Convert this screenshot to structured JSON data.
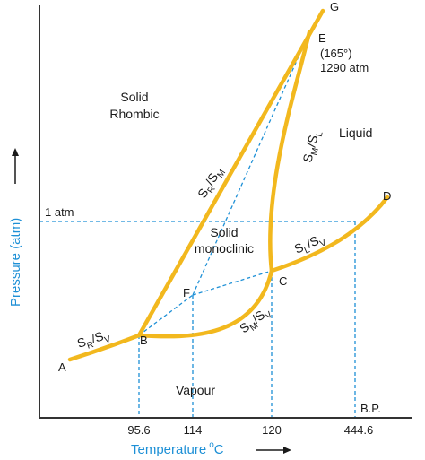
{
  "colors": {
    "curve": "#f2b81e",
    "guide": "#1e90d6",
    "axis": "#333333",
    "text": "#1a1a1a",
    "axis_label": "#1e90d6"
  },
  "points": {
    "A": "A",
    "B": "B",
    "C": "C",
    "D": "D",
    "E": "E",
    "F": "F",
    "G": "G"
  },
  "point_e_note": {
    "line1": "(165°)",
    "line2": "1290 atm"
  },
  "regions": {
    "solid_rhombic": [
      "Solid",
      "Rhombic"
    ],
    "solid_monoclinic": [
      "Solid",
      "monoclinic"
    ],
    "liquid": "Liquid",
    "vapour": "Vapour"
  },
  "curve_labels": {
    "sr_sv": {
      "a": "S",
      "a_sub": "R",
      "sep": "/",
      "b": "S",
      "b_sub": "V"
    },
    "sr_sm": {
      "a": "S",
      "a_sub": "R",
      "sep": "/",
      "b": "S",
      "b_sub": "M"
    },
    "sm_sl": {
      "a": "S",
      "a_sub": "M",
      "sep": "/",
      "b": "S",
      "b_sub": "L"
    },
    "sm_sv": {
      "a": "S",
      "a_sub": "M",
      "sep": "/",
      "b": "S",
      "b_sub": "V"
    },
    "sl_sv": {
      "a": "S",
      "a_sub": "L",
      "sep": "/",
      "b": "S",
      "b_sub": "V"
    }
  },
  "pressure_marker": "1 atm",
  "x_ticks": [
    "95.6",
    "114",
    "120",
    "444.6"
  ],
  "bp_label": "B.P.",
  "axes": {
    "x_label": "Temperature",
    "x_unit_sup": "o",
    "x_unit": "C",
    "y_label": "Pressure (atm)"
  }
}
